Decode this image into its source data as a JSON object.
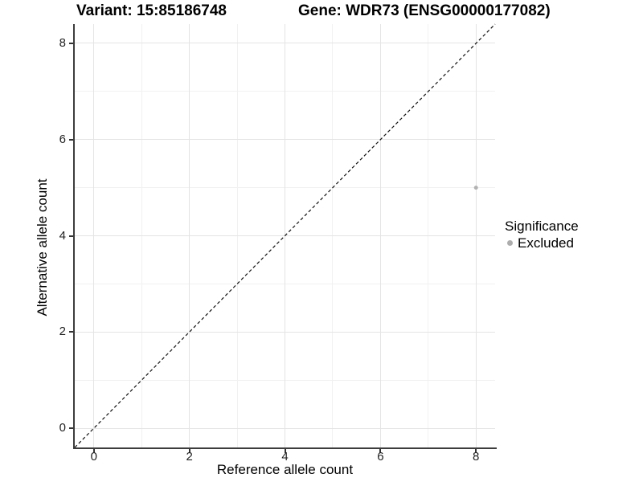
{
  "figure": {
    "title_left": "Variant: 15:85186748",
    "title_right": "Gene: WDR73 (ENSG00000177082)",
    "background": "#ffffff"
  },
  "legend": {
    "title": "Significance",
    "items": [
      {
        "label": "Excluded",
        "color": "#adadad"
      }
    ]
  },
  "chart_data": {
    "type": "scatter",
    "title_left": "Variant: 15:85186748",
    "title_right": "Gene: WDR73 (ENSG00000177082)",
    "xlabel": "Reference allele count",
    "ylabel": "Alternative allele count",
    "xlim": [
      -0.4,
      8.4
    ],
    "ylim": [
      -0.4,
      8.4
    ],
    "xticks": [
      0,
      2,
      4,
      6,
      8
    ],
    "yticks": [
      0,
      2,
      4,
      6,
      8
    ],
    "minor_xticks": [
      1,
      3,
      5,
      7
    ],
    "minor_yticks": [
      1,
      3,
      5,
      7
    ],
    "grid": "on",
    "points": [
      {
        "x": 8,
        "y": 5,
        "series": "Excluded",
        "color": "#b2b2b2"
      }
    ],
    "reference_line": {
      "type": "identity",
      "style": "dashed",
      "color": "#111111",
      "from": -0.4,
      "to": 8.4
    },
    "legend": {
      "title": "Significance",
      "position": "right",
      "entries": [
        {
          "label": "Excluded",
          "color": "#adadad"
        }
      ]
    }
  }
}
